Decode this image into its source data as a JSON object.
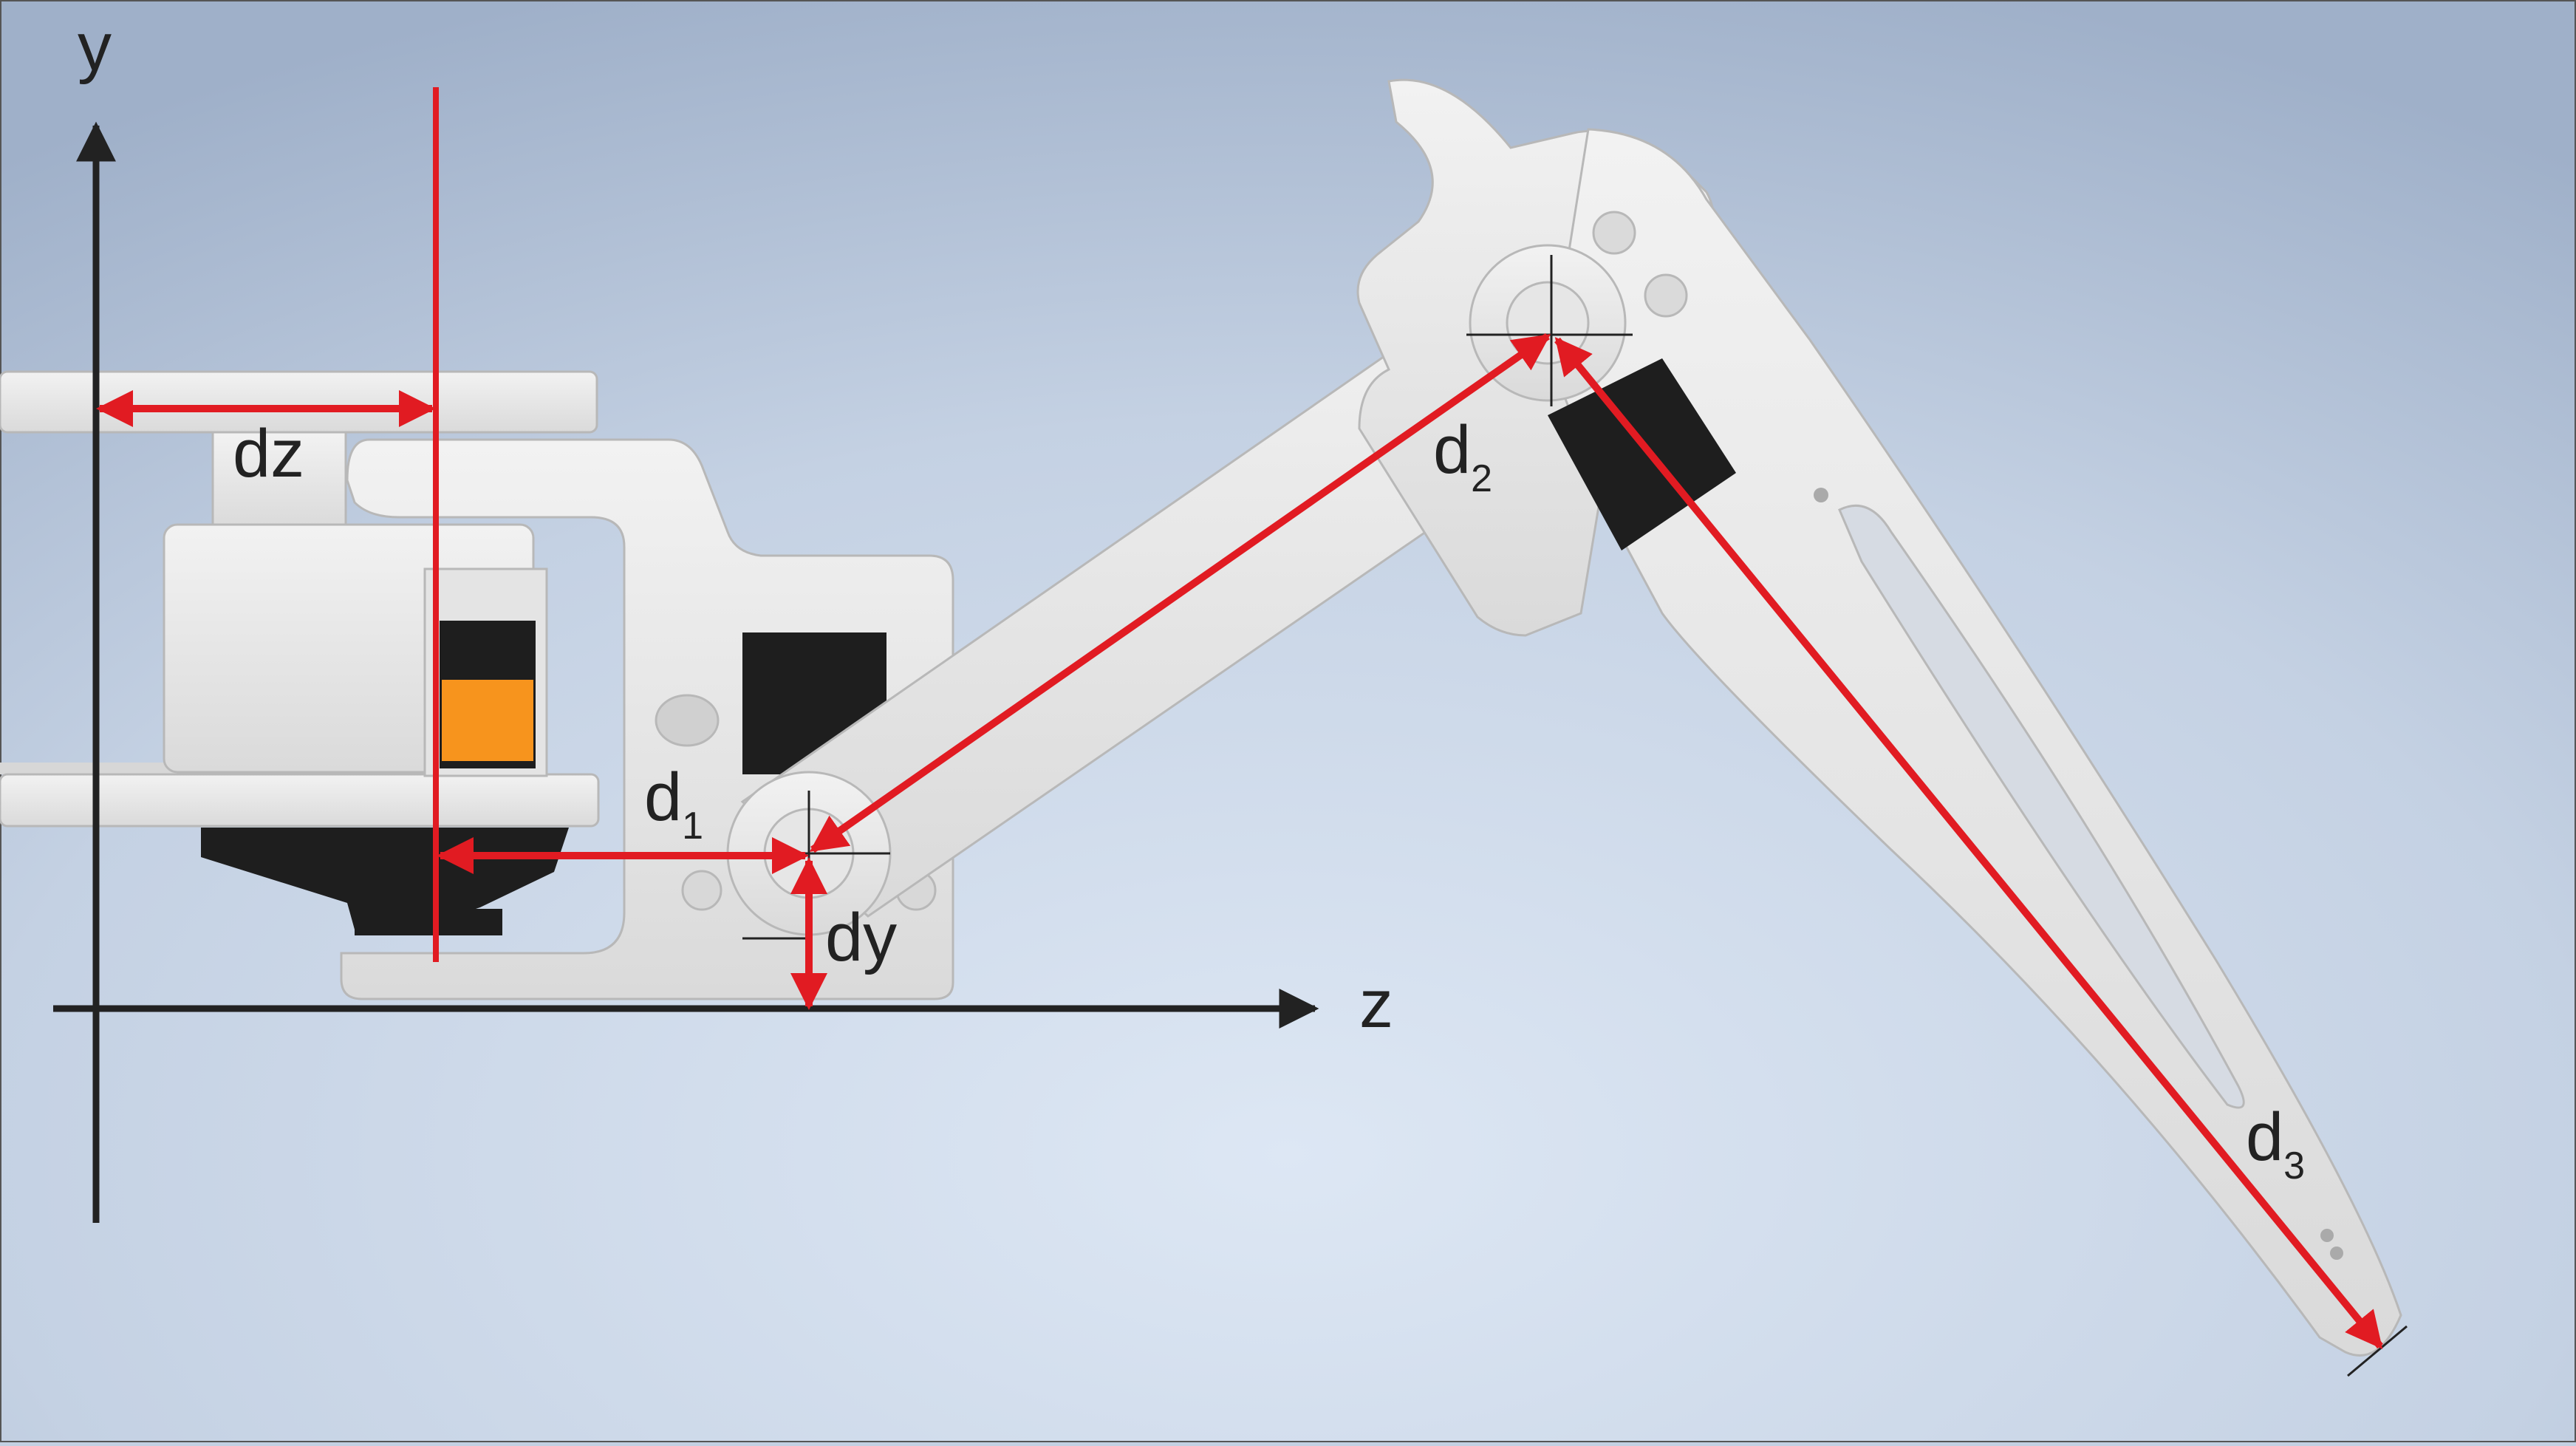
{
  "axes": {
    "y_label": "y",
    "z_label": "z"
  },
  "dimensions": {
    "dz": "dz",
    "dy": "dy",
    "d1": {
      "base": "d",
      "sub": "1"
    },
    "d2": {
      "base": "d",
      "sub": "2"
    },
    "d3": {
      "base": "d",
      "sub": "3"
    }
  },
  "colors": {
    "dimension_red": "#e11b22",
    "axis_dark": "#222222",
    "part_grey": "#e8e8e8",
    "servo_black": "#1e1e1e",
    "servo_label_orange": "#f7941d",
    "background_center": "#dbe5f3",
    "background_edge": "#9fb1cb"
  }
}
